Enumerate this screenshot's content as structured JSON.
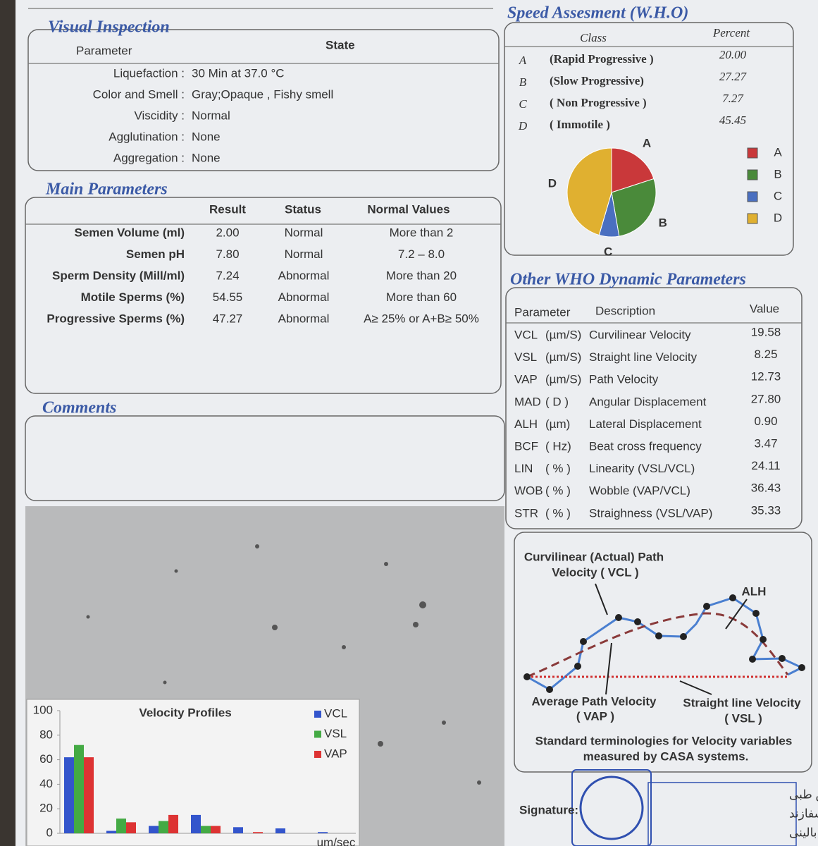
{
  "visual_inspection": {
    "title": "Visual Inspection",
    "headers": [
      "Parameter",
      "State"
    ],
    "rows": [
      {
        "label": "Liquefaction :",
        "value": "30  Min at  37.0 °C"
      },
      {
        "label": "Color and Smell :",
        "value": "Gray;Opaque  ,    Fishy smell"
      },
      {
        "label": "Viscidity :",
        "value": "Normal"
      },
      {
        "label": "Agglutination :",
        "value": "None"
      },
      {
        "label": "Aggregation :",
        "value": "None"
      }
    ]
  },
  "main_parameters": {
    "title": "Main Parameters",
    "headers": [
      "Result",
      "Status",
      "Normal Values"
    ],
    "rows": [
      {
        "label": "Semen Volume (ml)",
        "result": "2.00",
        "status": "Normal",
        "normal": "More than  2",
        "color": "#444444"
      },
      {
        "label": "Semen pH",
        "result": "7.80",
        "status": "Normal",
        "normal": "7.2 – 8.0",
        "color": "#444444"
      },
      {
        "label": "Sperm Density (Mill/ml)",
        "result": "7.24",
        "status": "Abnormal",
        "normal": "More than  20",
        "color": "#c0392b"
      },
      {
        "label": "Motile Sperms (%)",
        "result": "54.55",
        "status": "Abnormal",
        "normal": "More than 60",
        "color": "#c0392b"
      },
      {
        "label": "Progressive Sperms (%)",
        "result": "47.27",
        "status": "Abnormal",
        "normal": "A≥ 25% or A+B≥ 50%",
        "color": "#c0392b"
      }
    ]
  },
  "comments": {
    "title": "Comments"
  },
  "speed_assessment": {
    "title": "Speed Assesment (W.H.O)",
    "headers": [
      "Class",
      "Percent"
    ],
    "rows": [
      "(Rapid Progressive )",
      "(Slow Progressive)",
      "( Non Progressive )",
      "( Immotile )"
    ]
  },
  "chart_data": [
    {
      "type": "pie",
      "categories": [
        "A",
        "B",
        "C",
        "D"
      ],
      "values": [
        20,
        27.27,
        7.27,
        45.45
      ],
      "value_labels": [
        "20.00",
        "27.27",
        "7.27",
        "45.45"
      ],
      "colors": [
        "#c9383a",
        "#4a8a3a",
        "#4a6fc0",
        "#e0b030"
      ],
      "legend": "right"
    },
    {
      "type": "bar",
      "title": "Velocity Profiles",
      "x_label": "um/sec",
      "categories": [
        null,
        null,
        null,
        null,
        null,
        null,
        null
      ],
      "series": [
        {
          "name": "VCL",
          "color": "#3355cc",
          "values": [
            62,
            2,
            6,
            15,
            5,
            4,
            1
          ]
        },
        {
          "name": "VSL",
          "color": "#44aa44",
          "values": [
            72,
            12,
            10,
            6,
            0,
            0,
            0
          ]
        },
        {
          "name": "VAP",
          "color": "#dd3333",
          "values": [
            62,
            9,
            15,
            6,
            1,
            0,
            0
          ]
        }
      ],
      "ylim": [
        0,
        100
      ],
      "yticks": [
        0,
        20,
        40,
        60,
        80,
        100
      ],
      "legend": "upper right"
    }
  ],
  "other_parameters": {
    "title": "Other WHO Dynamic Parameters",
    "headers": [
      "Parameter",
      "Description",
      "Value"
    ],
    "rows": [
      {
        "param": "VCL",
        "unit": "(µm/S)",
        "desc": "Curvilinear Velocity",
        "value": "19.58"
      },
      {
        "param": "VSL",
        "unit": "(µm/S)",
        "desc": "Straight line Velocity",
        "value": "8.25"
      },
      {
        "param": "VAP",
        "unit": "(µm/S)",
        "desc": "Path Velocity",
        "value": "12.73"
      },
      {
        "param": "MAD",
        "unit": "( D )",
        "desc": "Angular Displacement",
        "value": "27.80"
      },
      {
        "param": "ALH",
        "unit": "(µm)",
        "desc": "Lateral Displacement",
        "value": "0.90"
      },
      {
        "param": "BCF",
        "unit": "( Hz)",
        "desc": "Beat cross frequency",
        "value": "3.47"
      },
      {
        "param": "LIN",
        "unit": "( % )",
        "desc": "Linearity (VSL/VCL)",
        "value": "24.11"
      },
      {
        "param": "WOB",
        "unit": "( % )",
        "desc": "Wobble  (VAP/VCL)",
        "value": "36.43"
      },
      {
        "param": "STR",
        "unit": "( % )",
        "desc": "Straighness (VSL/VAP)",
        "value": "35.33"
      }
    ]
  },
  "diagram": {
    "vcl_label": [
      "Curvilinear (Actual) Path",
      "Velocity ( VCL )"
    ],
    "alh": "ALH",
    "vap_label": [
      "Average Path Velocity",
      "( VAP )"
    ],
    "vsl_label": [
      "Straight line Velocity",
      "( VSL )"
    ],
    "caption": [
      "Standard terminologies for Velocity variables",
      "measured by CASA systems."
    ]
  },
  "signature": "Signature:",
  "stamp": [
    "آزمایشگاه تشخیص طبی",
    "دکتر محمدمهدی شفازند",
    "دکترای علوم آزمایشگاهی بالینی"
  ]
}
